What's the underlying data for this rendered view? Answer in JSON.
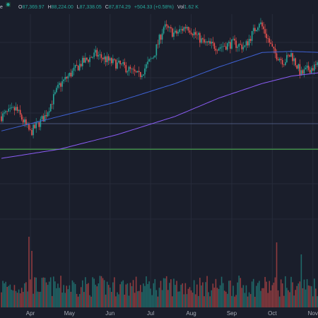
{
  "legend": {
    "symbol_fragment": "e",
    "open_label": "O",
    "open": "87,369.97",
    "high_label": "H",
    "high": "88,224.00",
    "low_label": "L",
    "low": "87,338.05",
    "close_label": "C",
    "close": "87,874.29",
    "change": "+504.33 (+0.58%)",
    "volume_label": "Vol",
    "volume": "1.62 K"
  },
  "chart_data": {
    "type": "candlestick",
    "x_tick_labels": [
      "Apr",
      "May",
      "Jun",
      "Jul",
      "Aug",
      "Sep",
      "Oct",
      "Nov"
    ],
    "price_range": [
      40000,
      100000
    ],
    "colors": {
      "background": "#1a1e2b",
      "up": "#26a69a",
      "down": "#ef5350",
      "ma_fast": "#3f62d6",
      "ma_slow": "#8b5cf6",
      "support_line": "#4caf50",
      "dashed_line": "#5a6b9a",
      "grid": "#262b3a"
    },
    "anchors": [
      {
        "i": 0,
        "c": 72000
      },
      {
        "i": 10,
        "c": 74000
      },
      {
        "i": 20,
        "c": 67500
      },
      {
        "i": 30,
        "c": 72000
      },
      {
        "i": 40,
        "c": 80500
      },
      {
        "i": 55,
        "c": 86500
      },
      {
        "i": 65,
        "c": 89000
      },
      {
        "i": 75,
        "c": 87000
      },
      {
        "i": 85,
        "c": 85500
      },
      {
        "i": 95,
        "c": 83000
      },
      {
        "i": 105,
        "c": 88500
      },
      {
        "i": 112,
        "c": 96500
      },
      {
        "i": 120,
        "c": 94500
      },
      {
        "i": 128,
        "c": 96800
      },
      {
        "i": 140,
        "c": 92000
      },
      {
        "i": 150,
        "c": 91000
      },
      {
        "i": 160,
        "c": 92000
      },
      {
        "i": 168,
        "c": 91000
      },
      {
        "i": 178,
        "c": 98000
      },
      {
        "i": 182,
        "c": 95000
      },
      {
        "i": 188,
        "c": 89500
      },
      {
        "i": 195,
        "c": 87000
      },
      {
        "i": 200,
        "c": 89000
      },
      {
        "i": 207,
        "c": 83500
      },
      {
        "i": 212,
        "c": 85000
      },
      {
        "i": 220,
        "c": 86000
      }
    ],
    "ma_fast_points": [
      {
        "i": 0,
        "v": 68000
      },
      {
        "i": 40,
        "v": 72000
      },
      {
        "i": 80,
        "v": 76000
      },
      {
        "i": 120,
        "v": 81000
      },
      {
        "i": 150,
        "v": 85500
      },
      {
        "i": 180,
        "v": 89500
      },
      {
        "i": 200,
        "v": 89800
      },
      {
        "i": 220,
        "v": 89500
      }
    ],
    "ma_slow_points": [
      {
        "i": 0,
        "v": 60500
      },
      {
        "i": 40,
        "v": 63000
      },
      {
        "i": 80,
        "v": 67000
      },
      {
        "i": 120,
        "v": 72000
      },
      {
        "i": 150,
        "v": 77000
      },
      {
        "i": 180,
        "v": 81000
      },
      {
        "i": 200,
        "v": 83000
      },
      {
        "i": 220,
        "v": 84000
      }
    ],
    "support_level": 63000,
    "dashed_level": 70000,
    "volume_spikes": [
      {
        "i": 19,
        "v": 1.0
      },
      {
        "i": 21,
        "v": 0.8
      },
      {
        "i": 190,
        "v": 0.92
      },
      {
        "i": 207,
        "v": 0.75
      }
    ]
  }
}
